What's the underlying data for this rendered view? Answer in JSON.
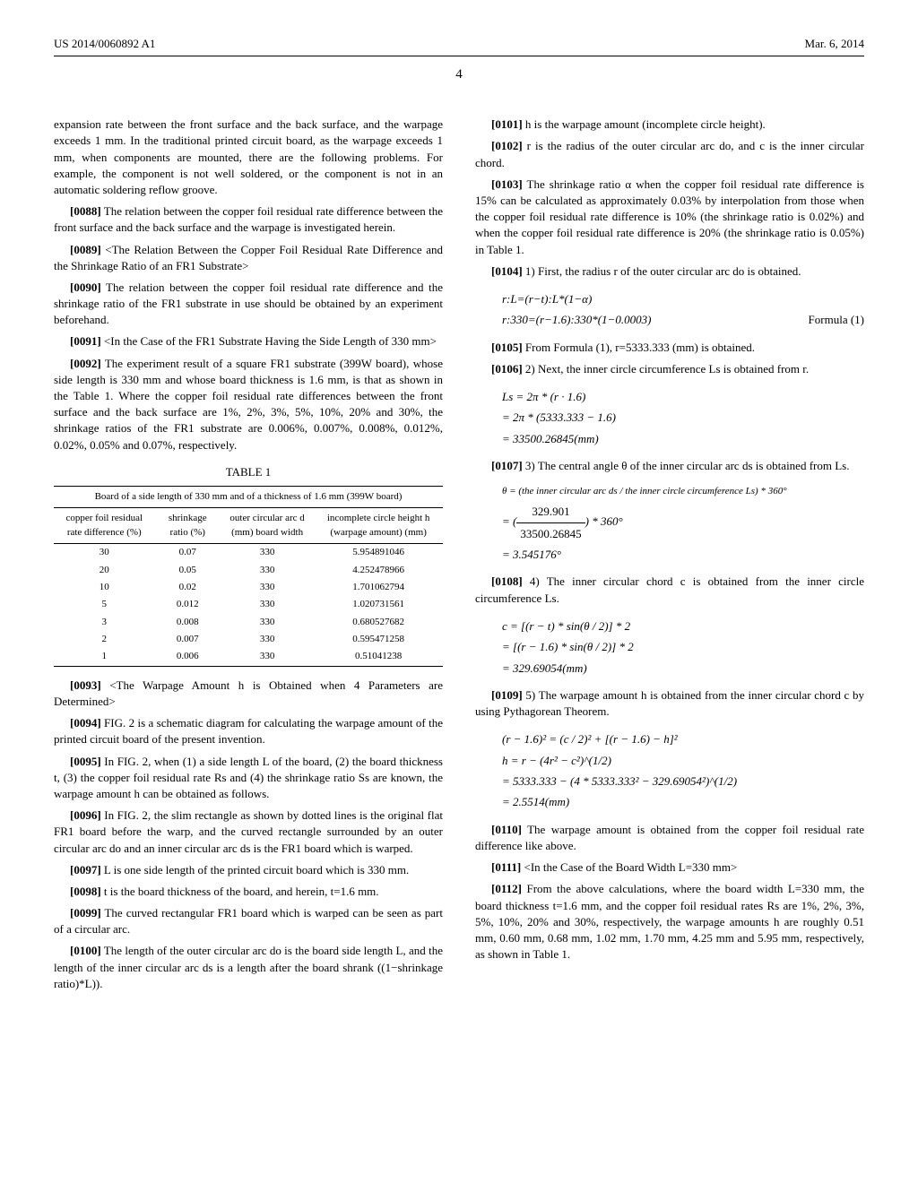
{
  "header": {
    "left": "US 2014/0060892 A1",
    "right": "Mar. 6, 2014"
  },
  "page_number": "4",
  "left_column": {
    "intro": "expansion rate between the front surface and the back surface, and the warpage exceeds 1 mm. In the traditional printed circuit board, as the warpage exceeds 1 mm, when components are mounted, there are the following problems. For example, the component is not well soldered, or the component is not in an automatic soldering reflow groove.",
    "p0088_num": "[0088]",
    "p0088": " The relation between the copper foil residual rate difference between the front surface and the back surface and the warpage is investigated herein.",
    "p0089_num": "[0089]",
    "p0089": " <The Relation Between the Copper Foil Residual Rate Difference and the Shrinkage Ratio of an FR1 Substrate>",
    "p0090_num": "[0090]",
    "p0090": " The relation between the copper foil residual rate difference and the shrinkage ratio of the FR1 substrate in use should be obtained by an experiment beforehand.",
    "p0091_num": "[0091]",
    "p0091": " <In the Case of the FR1 Substrate Having the Side Length of 330 mm>",
    "p0092_num": "[0092]",
    "p0092": " The experiment result of a square FR1 substrate (399W board), whose side length is 330 mm and whose board thickness is 1.6 mm, is that as shown in the Table 1. Where the copper foil residual rate differences between the front surface and the back surface are 1%, 2%, 3%, 5%, 10%, 20% and 30%, the shrinkage ratios of the FR1 substrate are 0.006%, 0.007%, 0.008%, 0.012%, 0.02%, 0.05% and 0.07%, respectively.",
    "table1": {
      "caption": "TABLE 1",
      "subcaption": "Board of a side length of 330 mm and of a thickness of 1.6 mm (399W board)",
      "columns": [
        "copper foil residual rate difference (%)",
        "shrinkage ratio (%)",
        "outer circular arc d (mm) board width",
        "incomplete circle height h (warpage amount) (mm)"
      ],
      "rows": [
        [
          "30",
          "0.07",
          "330",
          "5.954891046"
        ],
        [
          "20",
          "0.05",
          "330",
          "4.252478966"
        ],
        [
          "10",
          "0.02",
          "330",
          "1.701062794"
        ],
        [
          "5",
          "0.012",
          "330",
          "1.020731561"
        ],
        [
          "3",
          "0.008",
          "330",
          "0.680527682"
        ],
        [
          "2",
          "0.007",
          "330",
          "0.595471258"
        ],
        [
          "1",
          "0.006",
          "330",
          "0.51041238"
        ]
      ]
    },
    "p0093_num": "[0093]",
    "p0093": " <The Warpage Amount h is Obtained when 4 Parameters are Determined>",
    "p0094_num": "[0094]",
    "p0094": " FIG. 2 is a schematic diagram for calculating the warpage amount of the printed circuit board of the present invention.",
    "p0095_num": "[0095]",
    "p0095": " In FIG. 2, when (1) a side length L of the board, (2) the board thickness t, (3) the copper foil residual rate Rs and (4) the shrinkage ratio Ss are known, the warpage amount h can be obtained as follows.",
    "p0096_num": "[0096]",
    "p0096": " In FIG. 2, the slim rectangle as shown by dotted lines is the original flat FR1 board before the warp, and the curved rectangle surrounded by an outer circular arc do and an inner circular arc ds is the FR1 board which is warped.",
    "p0097_num": "[0097]",
    "p0097": " L is one side length of the printed circuit board which is 330 mm.",
    "p0098_num": "[0098]",
    "p0098": " t is the board thickness of the board, and herein, t=1.6 mm.",
    "p0099_num": "[0099]",
    "p0099": " The curved rectangular FR1 board which is warped can be seen as part of a circular arc.",
    "p0100_num": "[0100]",
    "p0100": " The length of the outer circular arc do is the board side length L, and the length of the inner circular arc ds is a length after the board shrank ((1−shrinkage ratio)*L))."
  },
  "right_column": {
    "p0101_num": "[0101]",
    "p0101": " h is the warpage amount (incomplete circle height).",
    "p0102_num": "[0102]",
    "p0102": " r is the radius of the outer circular arc do, and c is the inner circular chord.",
    "p0103_num": "[0103]",
    "p0103": " The shrinkage ratio α when the copper foil residual rate difference is 15% can be calculated as approximately 0.03% by interpolation from those when the copper foil residual rate difference is 10% (the shrinkage ratio is 0.02%) and when the copper foil residual rate difference is 20% (the shrinkage ratio is 0.05%) in Table 1.",
    "p0104_num": "[0104]",
    "p0104": " 1) First, the radius r of the outer circular arc do is obtained.",
    "formula1a": "r:L=(r−t):L*(1−α)",
    "formula1b": "r:330=(r−1.6):330*(1−0.0003)",
    "formula1b_label": "Formula (1)",
    "p0105_num": "[0105]",
    "p0105": " From Formula (1), r=5333.333 (mm) is obtained.",
    "p0106_num": "[0106]",
    "p0106": " 2) Next, the inner circle circumference Ls is obtained from r.",
    "formula2_l1": "Ls = 2π * (r · 1.6)",
    "formula2_l2": "    = 2π * (5333.333 − 1.6)",
    "formula2_l3": "    = 33500.26845(mm)",
    "p0107_num": "[0107]",
    "p0107": " 3) The central angle θ of the inner circular arc ds is obtained from Ls.",
    "formula3_l1": "θ = (the inner circular arc ds / the inner circle circumference Ls) * 360°",
    "formula3_num": "329.901",
    "formula3_den": "33500.26845",
    "formula3_tail": " * 360°",
    "formula3_l3": "= 3.545176°",
    "p0108_num": "[0108]",
    "p0108": " 4) The inner circular chord c is obtained from the inner circle circumference Ls.",
    "formula4_l1": "c = [(r − t) * sin(θ / 2)] * 2",
    "formula4_l2": "  = [(r − 1.6) * sin(θ / 2)] * 2",
    "formula4_l3": "  = 329.69054(mm)",
    "p0109_num": "[0109]",
    "p0109": " 5) The warpage amount h is obtained from the inner circular chord c by using Pythagorean Theorem.",
    "formula5_l1": "(r − 1.6)² = (c / 2)² + [(r − 1.6) − h]²",
    "formula5_l2": "h = r − (4r² − c²)^(1/2)",
    "formula5_l3": "  = 5333.333 − (4 * 5333.333² − 329.69054²)^(1/2)",
    "formula5_l4": "  = 2.5514(mm)",
    "p0110_num": "[0110]",
    "p0110": " The warpage amount is obtained from the copper foil residual rate difference like above.",
    "p0111_num": "[0111]",
    "p0111": " <In the Case of the Board Width L=330 mm>",
    "p0112_num": "[0112]",
    "p0112": " From the above calculations, where the board width L=330 mm, the board thickness t=1.6 mm, and the copper foil residual rates Rs are 1%, 2%, 3%, 5%, 10%, 20% and 30%, respectively, the warpage amounts h are roughly 0.51 mm, 0.60 mm, 0.68 mm, 1.02 mm, 1.70 mm, 4.25 mm and 5.95 mm, respectively, as shown in Table 1."
  }
}
